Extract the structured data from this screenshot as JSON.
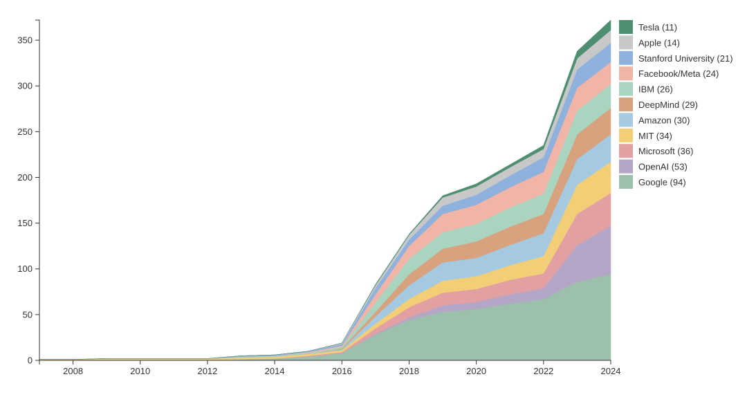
{
  "chart_data": {
    "type": "area",
    "stacked": true,
    "x": [
      2007,
      2008,
      2009,
      2010,
      2011,
      2012,
      2013,
      2014,
      2015,
      2016,
      2017,
      2018,
      2019,
      2020,
      2021,
      2022,
      2023,
      2024
    ],
    "xlim": [
      2007,
      2024
    ],
    "ylim": [
      0,
      372
    ],
    "x_ticks": [
      2008,
      2010,
      2012,
      2014,
      2016,
      2018,
      2020,
      2022,
      2024
    ],
    "y_ticks": [
      0,
      50,
      100,
      150,
      200,
      250,
      300,
      350
    ],
    "grid": false,
    "legend_position": "right",
    "series": [
      {
        "name": "Google",
        "legend_label": "Google (94)",
        "color": "#9dc0ad",
        "values": [
          0,
          0,
          0,
          0,
          0,
          0,
          1,
          2,
          4,
          8,
          28,
          44,
          53,
          56,
          62,
          67,
          86,
          94
        ]
      },
      {
        "name": "OpenAI",
        "legend_label": "OpenAI (53)",
        "color": "#b4a6c6",
        "values": [
          0,
          0,
          0,
          0,
          0,
          0,
          0,
          0,
          0,
          0,
          1,
          3,
          7,
          8,
          10,
          12,
          40,
          53
        ]
      },
      {
        "name": "Microsoft",
        "legend_label": "Microsoft (36)",
        "color": "#e3a0a3",
        "values": [
          0,
          0,
          0,
          0,
          0,
          0,
          0,
          0,
          1,
          1,
          6,
          11,
          14,
          14,
          16,
          16,
          34,
          36
        ]
      },
      {
        "name": "MIT",
        "legend_label": "MIT (34)",
        "color": "#f2cf76",
        "values": [
          1,
          1,
          2,
          2,
          2,
          2,
          2,
          2,
          2,
          2,
          5,
          9,
          13,
          14,
          16,
          19,
          32,
          34
        ]
      },
      {
        "name": "Amazon",
        "legend_label": "Amazon (30)",
        "color": "#a4c9e1",
        "values": [
          0,
          0,
          0,
          0,
          0,
          0,
          0,
          0,
          0,
          1,
          8,
          15,
          20,
          20,
          22,
          25,
          28,
          30
        ]
      },
      {
        "name": "DeepMind",
        "legend_label": "DeepMind (29)",
        "color": "#d9a27e",
        "values": [
          0,
          0,
          0,
          0,
          0,
          0,
          0,
          0,
          0,
          1,
          5,
          12,
          15,
          18,
          20,
          21,
          27,
          29
        ]
      },
      {
        "name": "IBM",
        "legend_label": "IBM (26)",
        "color": "#a8d4c0",
        "values": [
          0,
          0,
          0,
          0,
          0,
          0,
          1,
          1,
          1,
          2,
          10,
          17,
          18,
          19,
          21,
          22,
          26,
          26
        ]
      },
      {
        "name": "Facebook/Meta",
        "legend_label": "Facebook/Meta (24)",
        "color": "#f0b5a7",
        "values": [
          0,
          0,
          0,
          0,
          0,
          0,
          0,
          0,
          1,
          1,
          9,
          14,
          20,
          21,
          22,
          24,
          25,
          24
        ]
      },
      {
        "name": "Stanford University",
        "legend_label": "Stanford University (21)",
        "color": "#8eb1de",
        "values": [
          0,
          0,
          0,
          0,
          0,
          0,
          1,
          1,
          1,
          2,
          7,
          7,
          9,
          11,
          13,
          16,
          20,
          21
        ]
      },
      {
        "name": "Apple",
        "legend_label": "Apple (14)",
        "color": "#c8c8c8",
        "values": [
          0,
          0,
          0,
          0,
          0,
          0,
          0,
          0,
          0,
          1,
          3,
          5,
          9,
          9,
          9,
          9,
          12,
          14
        ]
      },
      {
        "name": "Tesla",
        "legend_label": "Tesla (11)",
        "color": "#4f8f71",
        "values": [
          0,
          0,
          0,
          0,
          0,
          0,
          0,
          0,
          0,
          0,
          1,
          1,
          2,
          3,
          3,
          4,
          8,
          11
        ]
      }
    ]
  }
}
